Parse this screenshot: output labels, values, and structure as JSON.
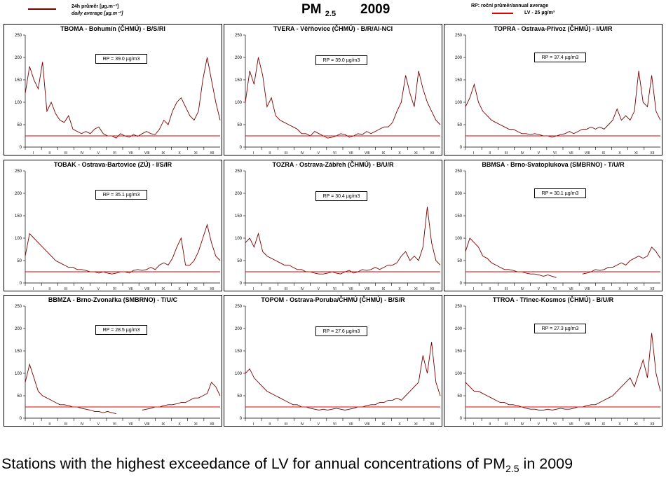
{
  "legend": {
    "daily_line1": "24h průměr [µg.m⁻³]",
    "daily_line2": "daily average [µg.m⁻³]",
    "annual_line1": "RP: roční průměr/annual average",
    "lv_label": "LV - 25 µg/m³",
    "daily_color": "#7a0000",
    "lv_color": "#e00000"
  },
  "title": {
    "pm": "PM",
    "sub": "2.5",
    "year": "2009"
  },
  "caption": {
    "main": "Stations with the highest exceedance of LV for annual concentrations of PM",
    "sub": "2.5",
    "tail": " in 2009"
  },
  "chart_data": [
    {
      "type": "line",
      "title": "TBOMA - Bohumín (ČHMÚ) - B/S/RI",
      "rp": "RP = 39.0 µg/m3",
      "ylim": [
        0,
        250
      ],
      "yticks": [
        "0",
        "50",
        "100",
        "150",
        "200",
        "250"
      ],
      "xticks": [
        "I",
        "II",
        "III",
        "IV",
        "V",
        "VI",
        "VII",
        "VIII",
        "IX",
        "X",
        "XI",
        "XII"
      ],
      "lv": 25,
      "series": [
        {
          "values": [
            120,
            180,
            150,
            130,
            190,
            80,
            100,
            75,
            60,
            55,
            70,
            40,
            35,
            30,
            35,
            30,
            40,
            45,
            30,
            25,
            25,
            20,
            30,
            25,
            22,
            28,
            24,
            30,
            35,
            30,
            28,
            40,
            60,
            50,
            80,
            100,
            110,
            90,
            70,
            60,
            80,
            150,
            200,
            150,
            100,
            60
          ]
        }
      ]
    },
    {
      "type": "line",
      "title": "TVERA - Věřňovice (ČHMÚ) - B/R/AI-NCI",
      "rp": "RP = 39.0 µg/m3",
      "ylim": [
        0,
        250
      ],
      "yticks": [
        "0",
        "50",
        "100",
        "150",
        "200",
        "250"
      ],
      "xticks": [
        "I",
        "II",
        "III",
        "IV",
        "V",
        "VI",
        "VII",
        "VIII",
        "IX",
        "X",
        "XI",
        "XII"
      ],
      "lv": 25,
      "series": [
        {
          "values": [
            100,
            170,
            140,
            200,
            160,
            90,
            110,
            70,
            60,
            55,
            50,
            45,
            40,
            30,
            30,
            25,
            35,
            30,
            25,
            20,
            22,
            25,
            30,
            28,
            22,
            25,
            30,
            28,
            35,
            30,
            35,
            40,
            45,
            45,
            55,
            80,
            100,
            160,
            120,
            90,
            170,
            130,
            100,
            80,
            60,
            50
          ]
        }
      ]
    },
    {
      "type": "line",
      "title": "TOPRA - Ostrava-Přívoz (ČHMÚ) - I/U/IR",
      "rp": "RP = 37.4 µg/m3",
      "ylim": [
        0,
        250
      ],
      "yticks": [
        "0",
        "50",
        "100",
        "150",
        "200",
        "250"
      ],
      "xticks": [
        "I",
        "II",
        "III",
        "IV",
        "V",
        "VI",
        "VII",
        "VIII",
        "IX",
        "X",
        "XI",
        "XII"
      ],
      "lv": 25,
      "series": [
        {
          "values": [
            90,
            110,
            140,
            100,
            80,
            70,
            60,
            55,
            50,
            45,
            40,
            40,
            35,
            30,
            30,
            28,
            30,
            28,
            25,
            25,
            22,
            25,
            28,
            30,
            35,
            30,
            35,
            40,
            40,
            45,
            40,
            45,
            40,
            50,
            60,
            85,
            60,
            70,
            60,
            80,
            170,
            100,
            90,
            160,
            80,
            60
          ]
        }
      ]
    },
    {
      "type": "line",
      "title": "TOBAK - Ostrava-Bartovice (ZÚ) - I/S/IR",
      "rp": "RP = 35.1 µg/m3",
      "ylim": [
        0,
        250
      ],
      "yticks": [
        "0",
        "50",
        "100",
        "150",
        "200",
        "250"
      ],
      "xticks": [
        "I",
        "II",
        "III",
        "IV",
        "V",
        "VI",
        "VII",
        "VIII",
        "IX",
        "X",
        "XI",
        "XII"
      ],
      "lv": 25,
      "series": [
        {
          "values": [
            60,
            110,
            100,
            90,
            80,
            70,
            60,
            50,
            45,
            40,
            35,
            35,
            30,
            30,
            28,
            25,
            25,
            22,
            25,
            22,
            20,
            22,
            25,
            25,
            22,
            28,
            30,
            28,
            30,
            35,
            30,
            40,
            45,
            40,
            55,
            80,
            100,
            40,
            40,
            50,
            70,
            100,
            130,
            90,
            60,
            50
          ]
        }
      ]
    },
    {
      "type": "line",
      "title": "TOZRA - Ostrava-Zábřeh (ČHMÚ) - B/U/R",
      "rp": "RP = 30.4 µg/m3",
      "ylim": [
        0,
        250
      ],
      "yticks": [
        "0",
        "50",
        "100",
        "150",
        "200",
        "250"
      ],
      "xticks": [
        "I",
        "II",
        "III",
        "IV",
        "V",
        "VI",
        "VII",
        "VIII",
        "IX",
        "X",
        "XI",
        "XII"
      ],
      "lv": 25,
      "series": [
        {
          "values": [
            90,
            100,
            80,
            110,
            70,
            60,
            55,
            50,
            45,
            40,
            40,
            35,
            30,
            30,
            25,
            25,
            22,
            20,
            20,
            22,
            25,
            22,
            20,
            25,
            28,
            22,
            25,
            30,
            28,
            30,
            35,
            30,
            35,
            40,
            40,
            45,
            60,
            70,
            50,
            60,
            50,
            80,
            170,
            90,
            50,
            40
          ]
        }
      ]
    },
    {
      "type": "line",
      "title": "BBMSA - Brno-Svatoplukova (SMBRNO) - T/U/R",
      "rp": "RP = 30.1 µg/m3",
      "ylim": [
        0,
        250
      ],
      "yticks": [
        "0",
        "50",
        "100",
        "150",
        "200",
        "250"
      ],
      "xticks": [
        "I",
        "II",
        "III",
        "IV",
        "V",
        "VI",
        "VII",
        "VIII",
        "IX",
        "X",
        "XI",
        "XII"
      ],
      "lv": 25,
      "series": [
        {
          "values": [
            70,
            100,
            90,
            80,
            60,
            55,
            45,
            40,
            35,
            30,
            30,
            28,
            25,
            25,
            22,
            20,
            20,
            18,
            15,
            18,
            15,
            12,
            null,
            null,
            null,
            null,
            null,
            20,
            22,
            25,
            30,
            28,
            30,
            35,
            35,
            40,
            45,
            40,
            50,
            55,
            60,
            55,
            60,
            80,
            70,
            55
          ]
        }
      ]
    },
    {
      "type": "line",
      "title": "BBMZA - Brno-Zvonařka (SMBRNO) - T/U/C",
      "rp": "RP = 28.5 µg/m3",
      "ylim": [
        0,
        250
      ],
      "yticks": [
        "0",
        "50",
        "100",
        "150",
        "200",
        "250"
      ],
      "xticks": [
        "I",
        "II",
        "III",
        "IV",
        "V",
        "VI",
        "VII",
        "VIII",
        "IX",
        "X",
        "XI",
        "XII"
      ],
      "lv": 25,
      "series": [
        {
          "values": [
            80,
            120,
            90,
            60,
            50,
            45,
            40,
            35,
            30,
            30,
            28,
            25,
            25,
            22,
            20,
            18,
            15,
            15,
            12,
            15,
            12,
            10,
            null,
            null,
            null,
            null,
            null,
            18,
            20,
            22,
            25,
            25,
            28,
            30,
            30,
            32,
            35,
            35,
            40,
            45,
            45,
            50,
            55,
            80,
            70,
            50
          ]
        }
      ]
    },
    {
      "type": "line",
      "title": "TOPOM - Ostrava-Poruba/ČHMÚ (ČHMÚ) - B/S/R",
      "rp": "RP = 27.6 µg/m3",
      "ylim": [
        0,
        250
      ],
      "yticks": [
        "0",
        "50",
        "100",
        "150",
        "200",
        "250"
      ],
      "xticks": [
        "I",
        "II",
        "III",
        "IV",
        "V",
        "VI",
        "VII",
        "VIII",
        "IX",
        "X",
        "XI",
        "XII"
      ],
      "lv": 25,
      "series": [
        {
          "values": [
            100,
            110,
            90,
            80,
            70,
            60,
            55,
            50,
            45,
            40,
            35,
            30,
            30,
            25,
            25,
            22,
            20,
            18,
            20,
            18,
            20,
            22,
            20,
            18,
            20,
            22,
            25,
            25,
            28,
            30,
            30,
            35,
            35,
            40,
            40,
            45,
            40,
            50,
            60,
            70,
            80,
            140,
            100,
            170,
            80,
            50
          ]
        }
      ]
    },
    {
      "type": "line",
      "title": "TTROA - Třinec-Kosmos (ČHMÚ) - B/U/R",
      "rp": "RP = 27.3 µg/m3",
      "ylim": [
        0,
        250
      ],
      "yticks": [
        "0",
        "50",
        "100",
        "150",
        "200",
        "250"
      ],
      "xticks": [
        "I",
        "II",
        "III",
        "IV",
        "V",
        "VI",
        "VII",
        "VIII",
        "IX",
        "X",
        "XI",
        "XII"
      ],
      "lv": 25,
      "series": [
        {
          "values": [
            80,
            70,
            60,
            60,
            55,
            50,
            45,
            40,
            35,
            35,
            30,
            30,
            28,
            25,
            22,
            20,
            20,
            18,
            18,
            20,
            18,
            20,
            22,
            20,
            20,
            22,
            25,
            25,
            28,
            30,
            30,
            35,
            40,
            45,
            50,
            60,
            70,
            80,
            90,
            70,
            100,
            130,
            90,
            190,
            100,
            60
          ]
        }
      ]
    }
  ]
}
